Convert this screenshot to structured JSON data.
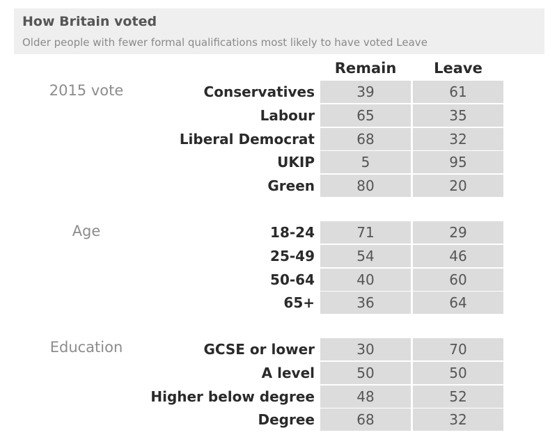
{
  "chart_data": {
    "type": "table",
    "title": "How Britain voted",
    "subtitle": "Older people with fewer formal qualifications most likely to have voted Leave",
    "columns": [
      "Remain",
      "Leave"
    ],
    "groups": [
      {
        "name": "2015 vote",
        "rows": [
          {
            "label": "Conservatives",
            "values": [
              39,
              61
            ]
          },
          {
            "label": "Labour",
            "values": [
              65,
              35
            ]
          },
          {
            "label": "Liberal Democrat",
            "values": [
              68,
              32
            ]
          },
          {
            "label": "UKIP",
            "values": [
              5,
              95
            ]
          },
          {
            "label": "Green",
            "values": [
              80,
              20
            ]
          }
        ]
      },
      {
        "name": "Age",
        "rows": [
          {
            "label": "18-24",
            "values": [
              71,
              29
            ]
          },
          {
            "label": "25-49",
            "values": [
              54,
              46
            ]
          },
          {
            "label": "50-64",
            "values": [
              40,
              60
            ]
          },
          {
            "label": "65+",
            "values": [
              36,
              64
            ]
          }
        ]
      },
      {
        "name": "Education",
        "rows": [
          {
            "label": "GCSE or lower",
            "values": [
              30,
              70
            ]
          },
          {
            "label": "A level",
            "values": [
              50,
              50
            ]
          },
          {
            "label": "Higher below degree",
            "values": [
              48,
              52
            ]
          },
          {
            "label": "Degree",
            "values": [
              68,
              32
            ]
          }
        ]
      }
    ]
  }
}
